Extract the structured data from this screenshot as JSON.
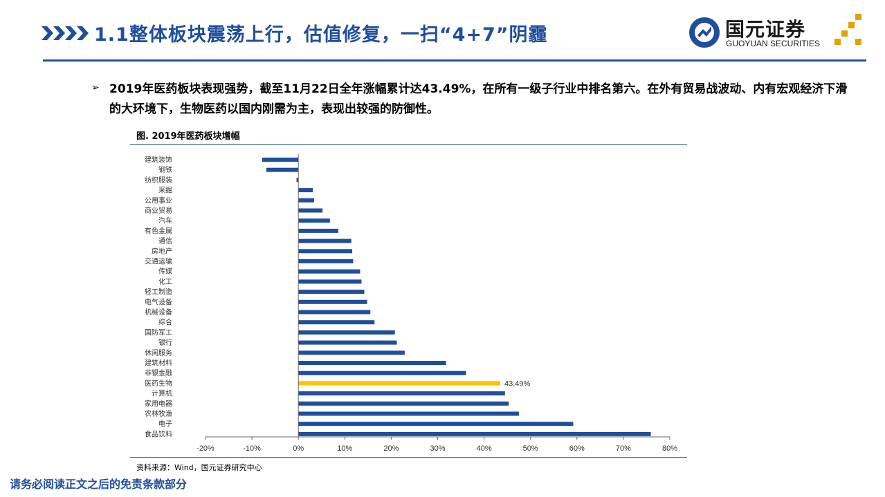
{
  "header": {
    "title": "1.1整体板块震荡上行，估值修复，一扫“4+7”阴霾",
    "logo_name": "国元证券",
    "logo_sub": "GUOYUAN SECURITIES"
  },
  "bullet": {
    "mark": "➢",
    "text": "2019年医药板块表现强势，截至11月22日全年涨幅累计达43.49%，在所有一级子行业中排名第六。在外有贸易战波动、内有宏观经济下滑的大环境下，生物医药以国内刚需为主，表现出较强的防御性。"
  },
  "figure": {
    "title": "图. 2019年医药板块增幅",
    "source": "资料来源：Wind，国元证券研究中心"
  },
  "footer": "请务必阅读正文之后的免责条款部分",
  "colors": {
    "brand": "#1f4e9c",
    "bar": "#1f4e9c",
    "highlight": "#ffc000",
    "logo_gold": "#e0a400"
  },
  "chart_data": {
    "type": "bar",
    "orientation": "horizontal",
    "categories": [
      "建筑装饰",
      "钢铁",
      "纺织服装",
      "采掘",
      "公用事业",
      "商业贸易",
      "汽车",
      "有色金属",
      "通信",
      "房地产",
      "交通运输",
      "传媒",
      "化工",
      "轻工制造",
      "电气设备",
      "机械设备",
      "综合",
      "国防军工",
      "银行",
      "休闲服务",
      "建筑材料",
      "非银金融",
      "医药生物",
      "计算机",
      "家用电器",
      "农林牧渔",
      "电子",
      "食品饮料"
    ],
    "values": [
      -7.8,
      -6.9,
      -0.4,
      3.1,
      3.4,
      5.2,
      6.8,
      8.6,
      11.4,
      11.6,
      11.8,
      13.3,
      13.6,
      14.2,
      14.8,
      15.5,
      16.4,
      20.8,
      21.2,
      22.9,
      31.8,
      36.1,
      43.49,
      44.5,
      45.3,
      47.5,
      59.2,
      75.9
    ],
    "highlight_category": "医药生物",
    "highlight_label": "43.49%",
    "xlim": [
      -20,
      80
    ],
    "xticks": [
      "-20%",
      "-10%",
      "0%",
      "10%",
      "20%",
      "30%",
      "40%",
      "50%",
      "60%",
      "70%",
      "80%"
    ],
    "title": "图. 2019年医药板块增幅",
    "xlabel": "",
    "ylabel": "",
    "grid": false,
    "legend": "none"
  }
}
